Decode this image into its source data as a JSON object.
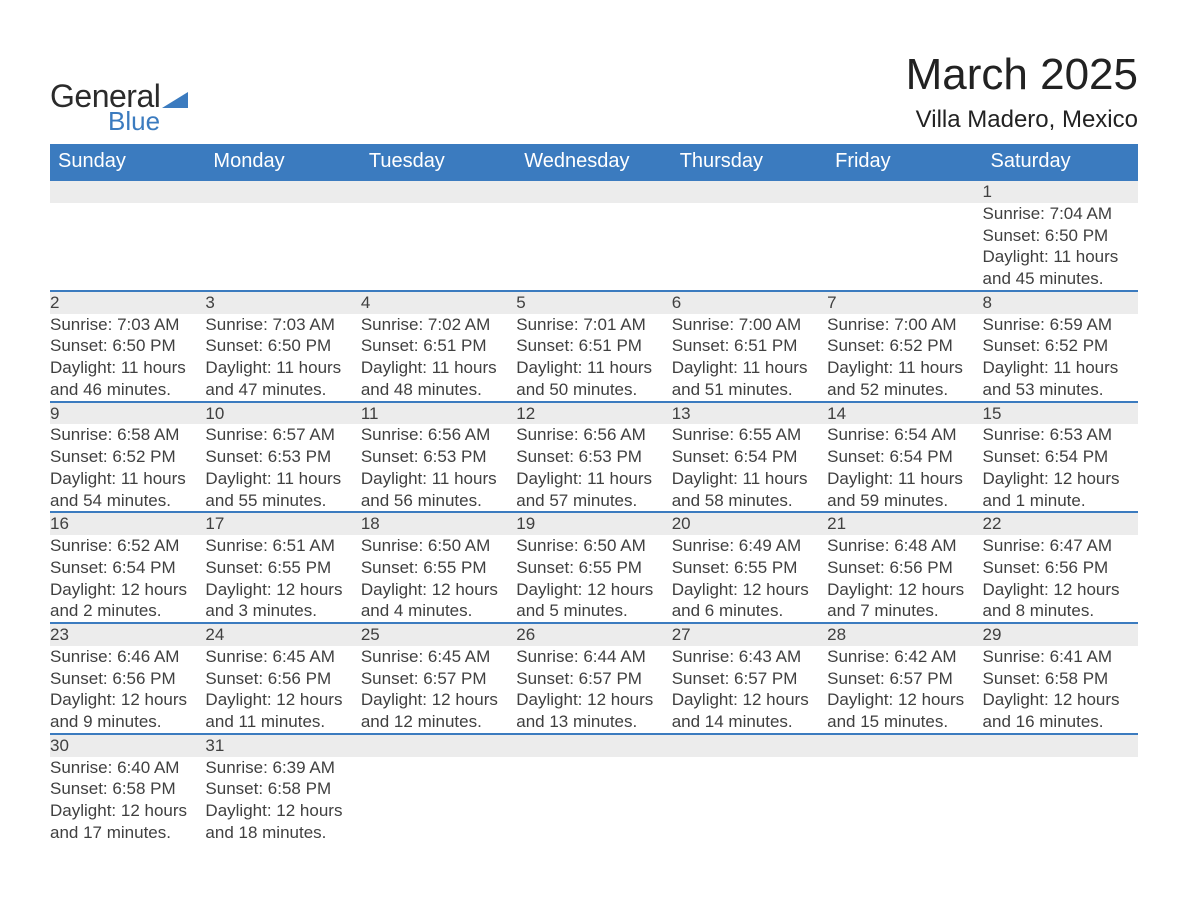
{
  "brand": {
    "word1": "General",
    "word2": "Blue",
    "triangle_color": "#3b7bbf"
  },
  "title": "March 2025",
  "location": "Villa Madero, Mexico",
  "weekday_labels": [
    "Sunday",
    "Monday",
    "Tuesday",
    "Wednesday",
    "Thursday",
    "Friday",
    "Saturday"
  ],
  "colors": {
    "header_bg": "#3b7bbf",
    "header_text": "#ffffff",
    "daynum_bg": "#ececec",
    "row_border": "#3b7bbf",
    "body_text": "#404040",
    "background": "#ffffff"
  },
  "typography": {
    "title_fontsize_pt": 33,
    "location_fontsize_pt": 18,
    "header_fontsize_pt": 15,
    "daynum_fontsize_pt": 14,
    "body_fontsize_pt": 13,
    "font_family": "Arial"
  },
  "weeks": [
    [
      null,
      null,
      null,
      null,
      null,
      null,
      {
        "n": "1",
        "sunrise": "Sunrise: 7:04 AM",
        "sunset": "Sunset: 6:50 PM",
        "dl1": "Daylight: 11 hours",
        "dl2": "and 45 minutes."
      }
    ],
    [
      {
        "n": "2",
        "sunrise": "Sunrise: 7:03 AM",
        "sunset": "Sunset: 6:50 PM",
        "dl1": "Daylight: 11 hours",
        "dl2": "and 46 minutes."
      },
      {
        "n": "3",
        "sunrise": "Sunrise: 7:03 AM",
        "sunset": "Sunset: 6:50 PM",
        "dl1": "Daylight: 11 hours",
        "dl2": "and 47 minutes."
      },
      {
        "n": "4",
        "sunrise": "Sunrise: 7:02 AM",
        "sunset": "Sunset: 6:51 PM",
        "dl1": "Daylight: 11 hours",
        "dl2": "and 48 minutes."
      },
      {
        "n": "5",
        "sunrise": "Sunrise: 7:01 AM",
        "sunset": "Sunset: 6:51 PM",
        "dl1": "Daylight: 11 hours",
        "dl2": "and 50 minutes."
      },
      {
        "n": "6",
        "sunrise": "Sunrise: 7:00 AM",
        "sunset": "Sunset: 6:51 PM",
        "dl1": "Daylight: 11 hours",
        "dl2": "and 51 minutes."
      },
      {
        "n": "7",
        "sunrise": "Sunrise: 7:00 AM",
        "sunset": "Sunset: 6:52 PM",
        "dl1": "Daylight: 11 hours",
        "dl2": "and 52 minutes."
      },
      {
        "n": "8",
        "sunrise": "Sunrise: 6:59 AM",
        "sunset": "Sunset: 6:52 PM",
        "dl1": "Daylight: 11 hours",
        "dl2": "and 53 minutes."
      }
    ],
    [
      {
        "n": "9",
        "sunrise": "Sunrise: 6:58 AM",
        "sunset": "Sunset: 6:52 PM",
        "dl1": "Daylight: 11 hours",
        "dl2": "and 54 minutes."
      },
      {
        "n": "10",
        "sunrise": "Sunrise: 6:57 AM",
        "sunset": "Sunset: 6:53 PM",
        "dl1": "Daylight: 11 hours",
        "dl2": "and 55 minutes."
      },
      {
        "n": "11",
        "sunrise": "Sunrise: 6:56 AM",
        "sunset": "Sunset: 6:53 PM",
        "dl1": "Daylight: 11 hours",
        "dl2": "and 56 minutes."
      },
      {
        "n": "12",
        "sunrise": "Sunrise: 6:56 AM",
        "sunset": "Sunset: 6:53 PM",
        "dl1": "Daylight: 11 hours",
        "dl2": "and 57 minutes."
      },
      {
        "n": "13",
        "sunrise": "Sunrise: 6:55 AM",
        "sunset": "Sunset: 6:54 PM",
        "dl1": "Daylight: 11 hours",
        "dl2": "and 58 minutes."
      },
      {
        "n": "14",
        "sunrise": "Sunrise: 6:54 AM",
        "sunset": "Sunset: 6:54 PM",
        "dl1": "Daylight: 11 hours",
        "dl2": "and 59 minutes."
      },
      {
        "n": "15",
        "sunrise": "Sunrise: 6:53 AM",
        "sunset": "Sunset: 6:54 PM",
        "dl1": "Daylight: 12 hours",
        "dl2": "and 1 minute."
      }
    ],
    [
      {
        "n": "16",
        "sunrise": "Sunrise: 6:52 AM",
        "sunset": "Sunset: 6:54 PM",
        "dl1": "Daylight: 12 hours",
        "dl2": "and 2 minutes."
      },
      {
        "n": "17",
        "sunrise": "Sunrise: 6:51 AM",
        "sunset": "Sunset: 6:55 PM",
        "dl1": "Daylight: 12 hours",
        "dl2": "and 3 minutes."
      },
      {
        "n": "18",
        "sunrise": "Sunrise: 6:50 AM",
        "sunset": "Sunset: 6:55 PM",
        "dl1": "Daylight: 12 hours",
        "dl2": "and 4 minutes."
      },
      {
        "n": "19",
        "sunrise": "Sunrise: 6:50 AM",
        "sunset": "Sunset: 6:55 PM",
        "dl1": "Daylight: 12 hours",
        "dl2": "and 5 minutes."
      },
      {
        "n": "20",
        "sunrise": "Sunrise: 6:49 AM",
        "sunset": "Sunset: 6:55 PM",
        "dl1": "Daylight: 12 hours",
        "dl2": "and 6 minutes."
      },
      {
        "n": "21",
        "sunrise": "Sunrise: 6:48 AM",
        "sunset": "Sunset: 6:56 PM",
        "dl1": "Daylight: 12 hours",
        "dl2": "and 7 minutes."
      },
      {
        "n": "22",
        "sunrise": "Sunrise: 6:47 AM",
        "sunset": "Sunset: 6:56 PM",
        "dl1": "Daylight: 12 hours",
        "dl2": "and 8 minutes."
      }
    ],
    [
      {
        "n": "23",
        "sunrise": "Sunrise: 6:46 AM",
        "sunset": "Sunset: 6:56 PM",
        "dl1": "Daylight: 12 hours",
        "dl2": "and 9 minutes."
      },
      {
        "n": "24",
        "sunrise": "Sunrise: 6:45 AM",
        "sunset": "Sunset: 6:56 PM",
        "dl1": "Daylight: 12 hours",
        "dl2": "and 11 minutes."
      },
      {
        "n": "25",
        "sunrise": "Sunrise: 6:45 AM",
        "sunset": "Sunset: 6:57 PM",
        "dl1": "Daylight: 12 hours",
        "dl2": "and 12 minutes."
      },
      {
        "n": "26",
        "sunrise": "Sunrise: 6:44 AM",
        "sunset": "Sunset: 6:57 PM",
        "dl1": "Daylight: 12 hours",
        "dl2": "and 13 minutes."
      },
      {
        "n": "27",
        "sunrise": "Sunrise: 6:43 AM",
        "sunset": "Sunset: 6:57 PM",
        "dl1": "Daylight: 12 hours",
        "dl2": "and 14 minutes."
      },
      {
        "n": "28",
        "sunrise": "Sunrise: 6:42 AM",
        "sunset": "Sunset: 6:57 PM",
        "dl1": "Daylight: 12 hours",
        "dl2": "and 15 minutes."
      },
      {
        "n": "29",
        "sunrise": "Sunrise: 6:41 AM",
        "sunset": "Sunset: 6:58 PM",
        "dl1": "Daylight: 12 hours",
        "dl2": "and 16 minutes."
      }
    ],
    [
      {
        "n": "30",
        "sunrise": "Sunrise: 6:40 AM",
        "sunset": "Sunset: 6:58 PM",
        "dl1": "Daylight: 12 hours",
        "dl2": "and 17 minutes."
      },
      {
        "n": "31",
        "sunrise": "Sunrise: 6:39 AM",
        "sunset": "Sunset: 6:58 PM",
        "dl1": "Daylight: 12 hours",
        "dl2": "and 18 minutes."
      },
      null,
      null,
      null,
      null,
      null
    ]
  ]
}
